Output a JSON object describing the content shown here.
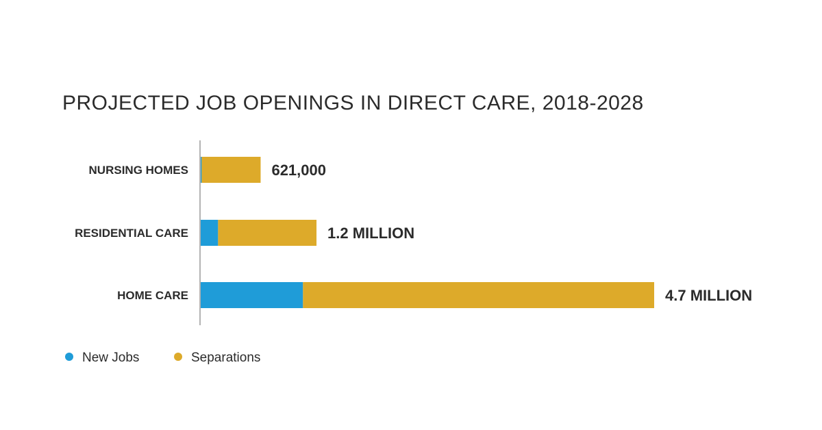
{
  "chart_data": {
    "type": "bar",
    "orientation": "horizontal",
    "stacked": true,
    "title": "PROJECTED JOB OPENINGS IN DIRECT CARE, 2018-2028",
    "categories": [
      "NURSING HOMES",
      "RESIDENTIAL CARE",
      "HOME CARE"
    ],
    "series": [
      {
        "name": "New Jobs",
        "color": "#1f9cd8",
        "values": [
          10000,
          180000,
          1060000
        ]
      },
      {
        "name": "Separations",
        "color": "#ddaa2a",
        "values": [
          611000,
          1020000,
          3640000
        ]
      }
    ],
    "data_labels": [
      "621,000",
      "1.2 MILLION",
      "4.7 MILLION"
    ],
    "xlim": [
      0,
      4700000
    ],
    "grid": false,
    "legend_position": "bottom-left"
  }
}
